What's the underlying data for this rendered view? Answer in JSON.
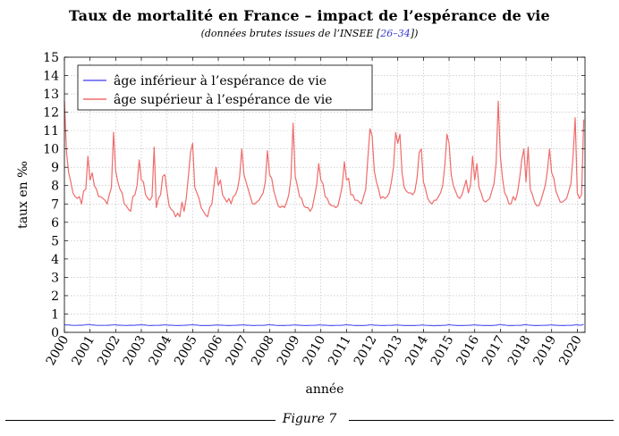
{
  "figure_caption": "Figure 7",
  "chart_data": {
    "type": "line",
    "title": "Taux de mortalité en France – impact de l’espérance de vie",
    "subtitle_prefix": "(données brutes issues de l’INSEE [",
    "subtitle_ref": "26–34",
    "subtitle_suffix": "])",
    "xlabel": "année",
    "ylabel": "taux en ‰",
    "xlim": [
      2000,
      2020.3
    ],
    "ylim": [
      0,
      15
    ],
    "x_ticks": [
      "2000",
      "2001",
      "2002",
      "2003",
      "2004",
      "2005",
      "2006",
      "2007",
      "2008",
      "2009",
      "2010",
      "2011",
      "2012",
      "2013",
      "2014",
      "2015",
      "2016",
      "2017",
      "2018",
      "2019",
      "2020"
    ],
    "y_ticks": [
      "0",
      "1",
      "2",
      "3",
      "4",
      "5",
      "6",
      "7",
      "8",
      "9",
      "10",
      "11",
      "12",
      "13",
      "14",
      "15"
    ],
    "grid": true,
    "legend_position": "top-left",
    "series": [
      {
        "name": "âge inférieur à l’espérance de vie",
        "color": "#5b5bf0",
        "values": [
          0.42,
          0.4,
          0.41,
          0.39,
          0.38,
          0.38,
          0.38,
          0.39,
          0.39,
          0.4,
          0.41,
          0.43,
          0.42,
          0.4,
          0.4,
          0.38,
          0.38,
          0.38,
          0.38,
          0.38,
          0.38,
          0.39,
          0.4,
          0.41,
          0.41,
          0.39,
          0.39,
          0.38,
          0.38,
          0.37,
          0.38,
          0.39,
          0.38,
          0.39,
          0.4,
          0.4,
          0.42,
          0.4,
          0.4,
          0.38,
          0.37,
          0.37,
          0.38,
          0.38,
          0.38,
          0.39,
          0.4,
          0.41,
          0.4,
          0.39,
          0.39,
          0.38,
          0.37,
          0.37,
          0.37,
          0.38,
          0.38,
          0.39,
          0.4,
          0.41,
          0.42,
          0.4,
          0.4,
          0.38,
          0.37,
          0.37,
          0.37,
          0.37,
          0.37,
          0.38,
          0.39,
          0.4,
          0.4,
          0.39,
          0.39,
          0.38,
          0.37,
          0.37,
          0.37,
          0.38,
          0.38,
          0.39,
          0.4,
          0.4,
          0.41,
          0.39,
          0.39,
          0.38,
          0.37,
          0.37,
          0.38,
          0.38,
          0.38,
          0.38,
          0.39,
          0.41,
          0.42,
          0.4,
          0.4,
          0.38,
          0.37,
          0.37,
          0.37,
          0.37,
          0.38,
          0.38,
          0.39,
          0.4,
          0.41,
          0.39,
          0.39,
          0.38,
          0.37,
          0.37,
          0.37,
          0.38,
          0.38,
          0.38,
          0.39,
          0.41,
          0.4,
          0.39,
          0.39,
          0.38,
          0.37,
          0.37,
          0.37,
          0.38,
          0.38,
          0.38,
          0.39,
          0.4,
          0.42,
          0.4,
          0.4,
          0.38,
          0.37,
          0.37,
          0.37,
          0.37,
          0.37,
          0.38,
          0.39,
          0.41,
          0.41,
          0.39,
          0.39,
          0.38,
          0.37,
          0.37,
          0.37,
          0.38,
          0.38,
          0.38,
          0.39,
          0.4,
          0.4,
          0.39,
          0.38,
          0.37,
          0.37,
          0.37,
          0.37,
          0.37,
          0.37,
          0.38,
          0.38,
          0.4,
          0.4,
          0.38,
          0.38,
          0.37,
          0.37,
          0.36,
          0.37,
          0.37,
          0.37,
          0.38,
          0.38,
          0.4,
          0.42,
          0.4,
          0.39,
          0.38,
          0.37,
          0.37,
          0.37,
          0.37,
          0.38,
          0.38,
          0.39,
          0.4,
          0.41,
          0.39,
          0.39,
          0.38,
          0.37,
          0.37,
          0.37,
          0.37,
          0.37,
          0.38,
          0.39,
          0.41,
          0.43,
          0.4,
          0.4,
          0.38,
          0.37,
          0.37,
          0.37,
          0.38,
          0.38,
          0.38,
          0.39,
          0.41,
          0.42,
          0.4,
          0.39,
          0.38,
          0.37,
          0.37,
          0.37,
          0.38,
          0.38,
          0.38,
          0.39,
          0.4,
          0.41,
          0.39,
          0.39,
          0.38,
          0.37,
          0.37,
          0.37,
          0.38,
          0.38,
          0.38,
          0.39,
          0.41,
          0.41,
          0.39,
          0.4,
          0.44
        ]
      },
      {
        "name": "âge supérieur à l’espérance de vie",
        "color": "#f06b6b",
        "values": [
          12.6,
          9.8,
          8.7,
          8.2,
          7.6,
          7.4,
          7.3,
          7.4,
          7.0,
          7.7,
          7.8,
          9.6,
          8.3,
          8.7,
          8.0,
          7.8,
          7.4,
          7.4,
          7.3,
          7.2,
          7.0,
          7.5,
          7.9,
          10.9,
          8.8,
          8.2,
          7.8,
          7.6,
          7.0,
          6.9,
          6.7,
          6.6,
          7.4,
          7.5,
          8.0,
          9.4,
          8.3,
          8.2,
          7.5,
          7.3,
          7.2,
          7.4,
          10.1,
          6.8,
          7.3,
          7.5,
          8.5,
          8.6,
          7.7,
          6.9,
          6.7,
          6.6,
          6.3,
          6.5,
          6.3,
          7.1,
          6.6,
          7.3,
          8.5,
          9.8,
          10.3,
          7.9,
          7.6,
          7.3,
          6.8,
          6.6,
          6.4,
          6.3,
          6.8,
          7.0,
          8.0,
          9.0,
          8.0,
          8.3,
          7.5,
          7.3,
          7.1,
          7.3,
          7.0,
          7.4,
          7.5,
          7.8,
          8.5,
          10.0,
          8.6,
          8.2,
          7.8,
          7.4,
          7.0,
          7.0,
          7.1,
          7.2,
          7.4,
          7.6,
          8.2,
          9.9,
          8.6,
          8.4,
          7.7,
          7.3,
          6.9,
          6.8,
          6.9,
          6.8,
          7.1,
          7.5,
          8.4,
          11.4,
          8.5,
          8.0,
          7.4,
          7.3,
          6.9,
          6.8,
          6.8,
          6.6,
          6.8,
          7.4,
          8.0,
          9.2,
          8.3,
          8.1,
          7.4,
          7.3,
          7.0,
          6.9,
          6.9,
          6.8,
          6.9,
          7.4,
          8.0,
          9.3,
          8.3,
          8.4,
          7.5,
          7.5,
          7.2,
          7.2,
          7.1,
          7.0,
          7.4,
          7.8,
          9.5,
          11.1,
          10.7,
          8.8,
          8.2,
          7.8,
          7.3,
          7.4,
          7.3,
          7.4,
          7.6,
          8.2,
          9.0,
          10.9,
          10.3,
          10.8,
          8.7,
          7.9,
          7.7,
          7.6,
          7.6,
          7.5,
          7.7,
          8.4,
          9.8,
          10.0,
          8.2,
          7.8,
          7.3,
          7.1,
          7.0,
          7.2,
          7.2,
          7.4,
          7.6,
          8.0,
          9.1,
          10.8,
          10.3,
          8.6,
          8.0,
          7.7,
          7.4,
          7.3,
          7.5,
          7.9,
          8.3,
          7.6,
          8.0,
          9.6,
          8.3,
          9.2,
          7.9,
          7.6,
          7.2,
          7.1,
          7.2,
          7.3,
          7.7,
          8.1,
          9.2,
          12.6,
          9.6,
          8.4,
          7.6,
          7.4,
          7.0,
          7.0,
          7.4,
          7.2,
          7.6,
          8.4,
          9.4,
          10.0,
          8.2,
          10.1,
          7.8,
          7.5,
          7.1,
          6.9,
          6.9,
          7.2,
          7.6,
          8.0,
          8.8,
          10.0,
          8.7,
          8.4,
          7.7,
          7.4,
          7.1,
          7.1,
          7.2,
          7.3,
          7.7,
          8.1,
          9.6,
          11.7,
          7.6,
          7.3,
          7.5,
          11.6
        ]
      }
    ]
  }
}
